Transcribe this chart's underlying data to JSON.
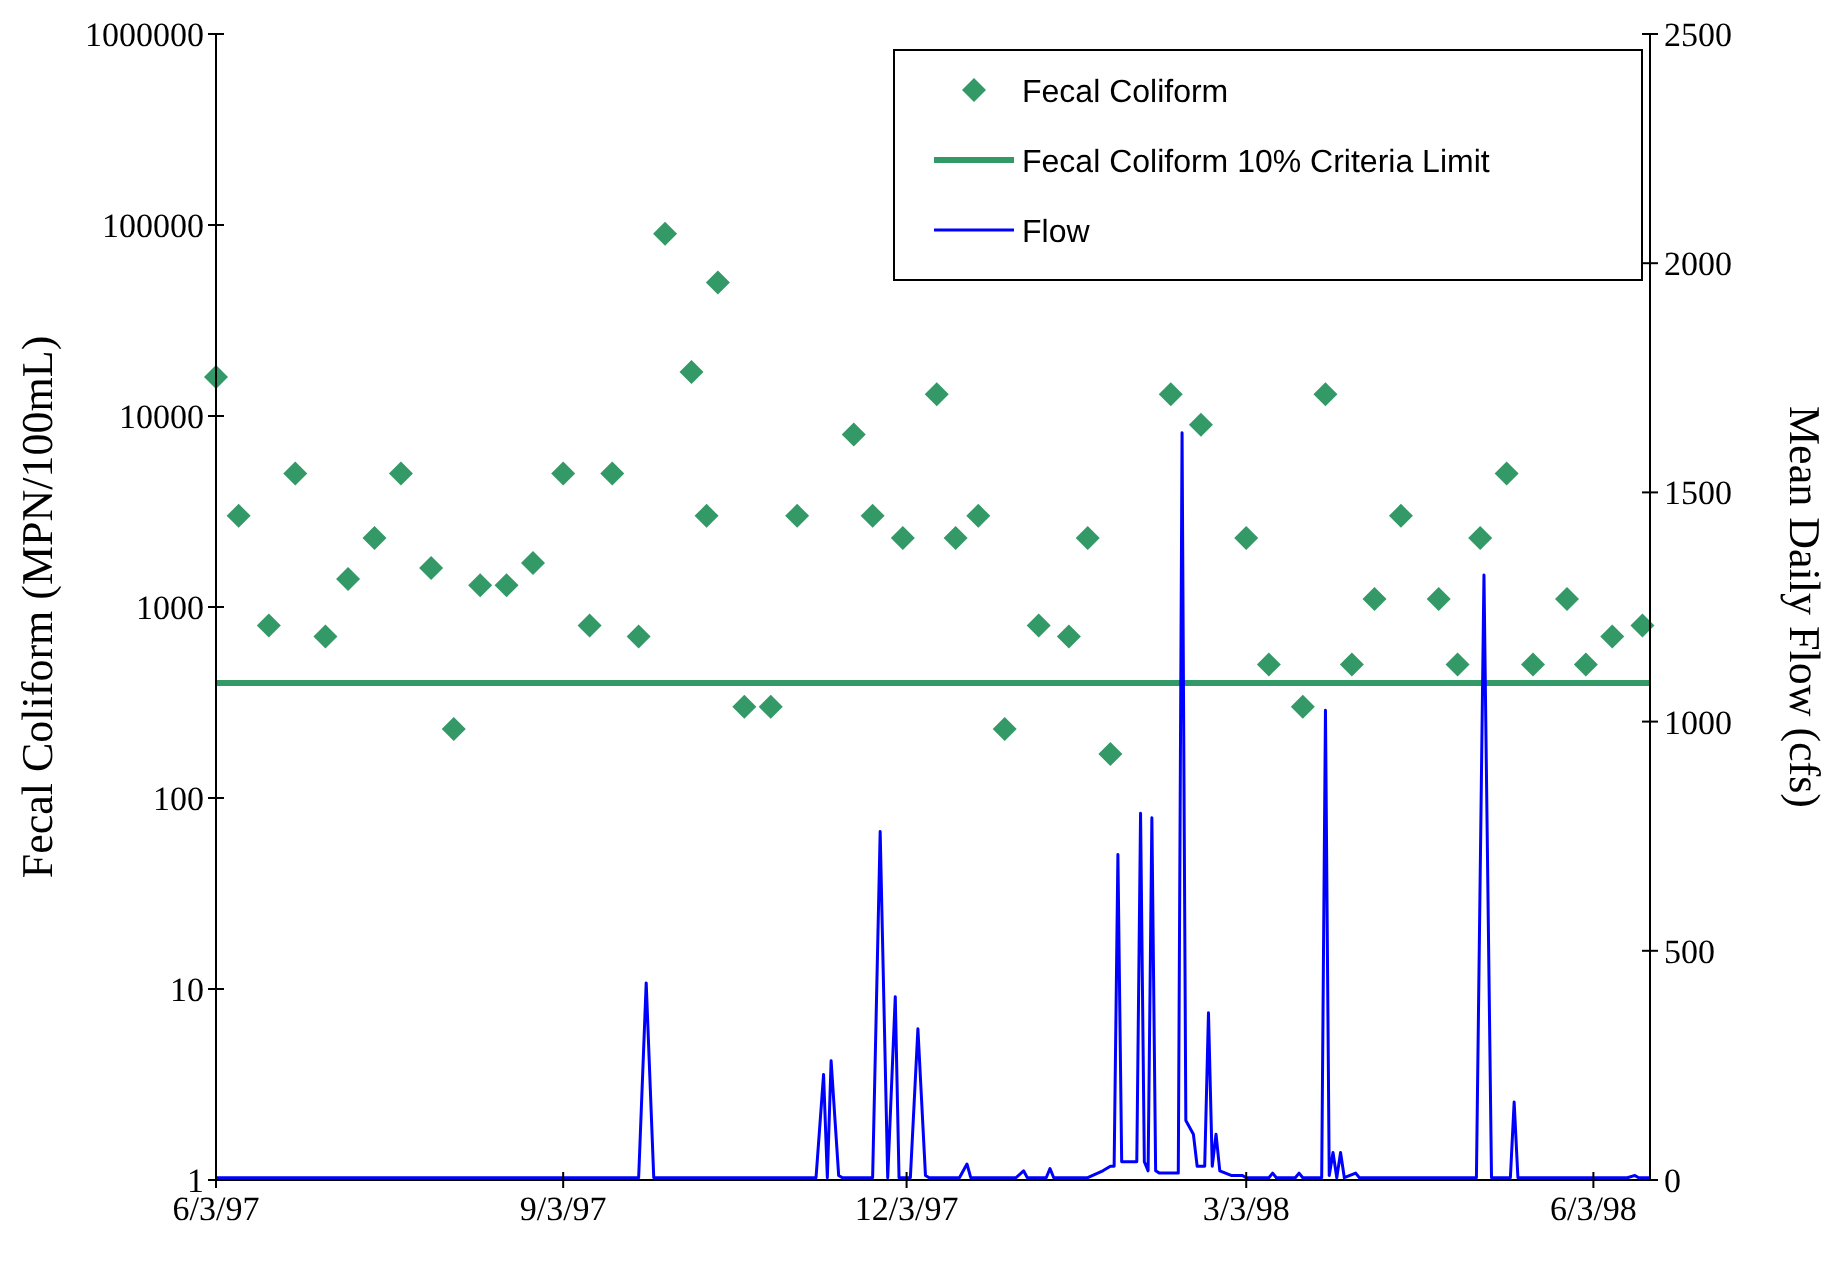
{
  "chart_data": {
    "type": "scatter",
    "xlabel": null,
    "ylabel": "Fecal Coliform (MPN/100mL)",
    "y2label": "Mean Daily Flow (cfs)",
    "xlim": [
      "1997-06-03",
      "1998-06-18"
    ],
    "xticks": [
      {
        "value": "1997-06-03",
        "label": "6/3/97"
      },
      {
        "value": "1997-09-03",
        "label": "9/3/97"
      },
      {
        "value": "1997-12-03",
        "label": "12/3/97"
      },
      {
        "value": "1998-03-03",
        "label": "3/3/98"
      },
      {
        "value": "1998-06-03",
        "label": "6/3/98"
      }
    ],
    "ylim": [
      1,
      1000000
    ],
    "yticks": [
      1,
      10,
      100,
      1000,
      10000,
      100000,
      1000000
    ],
    "log": "y",
    "y2lim": [
      0,
      2500
    ],
    "y2ticks": [
      0,
      500,
      1000,
      1500,
      2000,
      2500
    ],
    "grid": false,
    "legend": "top right",
    "series": [
      {
        "name": "Fecal Coliform",
        "marker": "diamond",
        "color": "#339966",
        "x": [
          "1997-06-03",
          "1997-06-09",
          "1997-06-17",
          "1997-06-24",
          "1997-07-02",
          "1997-07-08",
          "1997-07-15",
          "1997-07-22",
          "1997-07-30",
          "1997-08-05",
          "1997-08-12",
          "1997-08-19",
          "1997-08-26",
          "1997-09-03",
          "1997-09-10",
          "1997-09-16",
          "1997-09-23",
          "1997-09-30",
          "1997-10-07",
          "1997-10-11",
          "1997-10-14",
          "1997-10-21",
          "1997-10-28",
          "1997-11-04",
          "1997-11-19",
          "1997-11-24",
          "1997-12-02",
          "1997-12-11",
          "1997-12-16",
          "1997-12-22",
          "1997-12-29",
          "1998-01-07",
          "1998-01-15",
          "1998-01-20",
          "1998-01-26",
          "1998-02-11",
          "1998-02-19",
          "1998-03-03",
          "1998-03-09",
          "1998-03-18",
          "1998-03-24",
          "1998-03-31",
          "1998-04-06",
          "1998-04-13",
          "1998-04-23",
          "1998-04-28",
          "1998-05-04",
          "1998-05-11",
          "1998-05-18",
          "1998-05-27",
          "1998-06-01",
          "1998-06-08",
          "1998-06-16"
        ],
        "values": [
          16000,
          3000,
          800,
          5000,
          700,
          1400,
          2300,
          5000,
          1600,
          230,
          1300,
          1300,
          1700,
          5000,
          800,
          5000,
          700,
          90000,
          17000,
          3000,
          50000,
          300,
          300,
          3000,
          8000,
          3000,
          2300,
          13000,
          2300,
          3000,
          230,
          800,
          700,
          2300,
          170,
          13000,
          9000,
          2300,
          500,
          300,
          13000,
          500,
          1100,
          3000,
          1100,
          500,
          2300,
          5000,
          500,
          1100,
          500,
          700,
          800
        ]
      },
      {
        "name": "Flow",
        "type": "line",
        "axis": "y2",
        "marker": "none",
        "line_style": "solid",
        "color": "#0000ff",
        "x": [
          "1997-06-03",
          "1997-09-23",
          "1997-09-25",
          "1997-09-27",
          "1997-11-09",
          "1997-11-11",
          "1997-11-12",
          "1997-11-13",
          "1997-11-15",
          "1997-11-16",
          "1997-11-24",
          "1997-11-26",
          "1997-11-28",
          "1997-11-30",
          "1997-12-01",
          "1997-12-04",
          "1997-12-06",
          "1997-12-08",
          "1997-12-09",
          "1997-12-17",
          "1997-12-19",
          "1997-12-20",
          "1998-01-01",
          "1998-01-03",
          "1998-01-04",
          "1998-01-09",
          "1998-01-10",
          "1998-01-11",
          "1998-01-20",
          "1998-01-24",
          "1998-01-26",
          "1998-01-27",
          "1998-01-28",
          "1998-01-29",
          "1998-02-02",
          "1998-02-03",
          "1998-02-04",
          "1998-02-05",
          "1998-02-06",
          "1998-02-07",
          "1998-02-08",
          "1998-02-13",
          "1998-02-14",
          "1998-02-15",
          "1998-02-17",
          "1998-02-18",
          "1998-02-20",
          "1998-02-21",
          "1998-02-22",
          "1998-02-23",
          "1998-02-24",
          "1998-02-27",
          "1998-03-02",
          "1998-03-03",
          "1998-03-09",
          "1998-03-10",
          "1998-03-11",
          "1998-03-16",
          "1998-03-17",
          "1998-03-18",
          "1998-03-23",
          "1998-03-24",
          "1998-03-25",
          "1998-03-26",
          "1998-03-27",
          "1998-03-28",
          "1998-03-29",
          "1998-04-01",
          "1998-04-02",
          "1998-05-03",
          "1998-05-05",
          "1998-05-07",
          "1998-05-12",
          "1998-05-13",
          "1998-05-14",
          "1998-06-12",
          "1998-06-14",
          "1998-06-15",
          "1998-06-18"
        ],
        "values": [
          5,
          5,
          430,
          5,
          5,
          230,
          5,
          260,
          10,
          5,
          5,
          760,
          5,
          400,
          5,
          5,
          330,
          10,
          5,
          5,
          35,
          5,
          5,
          20,
          5,
          5,
          25,
          5,
          5,
          20,
          30,
          30,
          710,
          40,
          40,
          800,
          40,
          20,
          790,
          20,
          15,
          15,
          1630,
          130,
          100,
          30,
          30,
          365,
          30,
          100,
          20,
          10,
          10,
          5,
          5,
          15,
          5,
          5,
          15,
          5,
          5,
          1025,
          10,
          60,
          5,
          60,
          5,
          15,
          5,
          5,
          1320,
          5,
          5,
          170,
          5,
          5,
          10,
          5,
          5
        ]
      }
    ],
    "ref_lines": [
      {
        "axis": "y",
        "value": 400,
        "label": "Fecal Coliform 10% Criteria Limit",
        "color": "#339966",
        "line_style": "solid"
      }
    ]
  }
}
